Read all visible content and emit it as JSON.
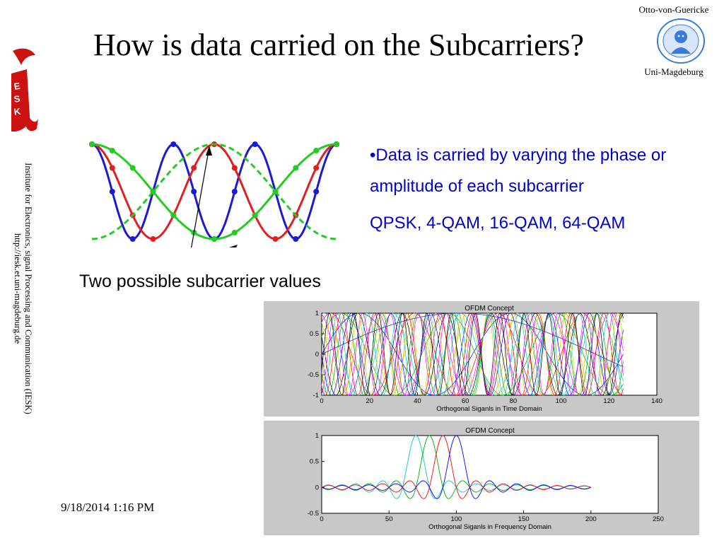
{
  "slide": {
    "title": "How is data carried on the Subcarriers?",
    "university_top": "Otto-von-Guericke",
    "university_bottom": "Uni-Magdeburg",
    "institute_line1": "Institute for Electronics, signal Processing and Communication (IESK)",
    "institute_line2": "http://iesk.et.uni-magdeburg.de",
    "caption": "Two possible subcarrier values",
    "bullet": "•Data is carried by varying the phase or amplitude of each subcarrier",
    "modulations": "QPSK, 4-QAM, 16-QAM, 64-QAM",
    "date": "9/18/2014 1:16 PM"
  },
  "icons": {
    "logo_left": "esk-logo-icon",
    "logo_right": "university-seal-icon"
  },
  "colors": {
    "title": "#000000",
    "bullet_text": "#0000cc",
    "wave_blue": "#1a1ad6",
    "wave_red": "#e02020",
    "wave_green": "#22cc22",
    "figure_bg": "#c8c8c8",
    "esk_red": "#cc1111"
  },
  "chart_data": [
    {
      "type": "line",
      "title": "OFDM Concept",
      "xlabel": "Orthogonal Siganls in Time Domain",
      "ylabel": "",
      "xlim": [
        0,
        140
      ],
      "ylim": [
        -1,
        1
      ],
      "xticks": [
        0,
        20,
        40,
        60,
        80,
        100,
        120,
        140
      ],
      "yticks": [
        1,
        0.5,
        0,
        -0.5,
        -1
      ],
      "series_colors": [
        "#0000ff",
        "#00aa00",
        "#ff0000",
        "#00cccc",
        "#ff00ff",
        "#cccc00",
        "#000000"
      ],
      "x_end": 126
    },
    {
      "type": "line",
      "title": "OFDM Concept",
      "xlabel": "Orthogonal Siganls in Frequency Domain",
      "ylabel": "",
      "xlim": [
        0,
        250
      ],
      "ylim": [
        -0.5,
        1
      ],
      "xticks": [
        0,
        50,
        100,
        150,
        200,
        250
      ],
      "yticks": [
        1,
        0.5,
        0,
        -0.5
      ],
      "peaks": [
        {
          "center": 70,
          "color": "#00cccc"
        },
        {
          "center": 80,
          "color": "#00aa00"
        },
        {
          "center": 90,
          "color": "#ff0000"
        },
        {
          "center": 100,
          "color": "#0000ff"
        }
      ],
      "x_end": 200
    }
  ]
}
